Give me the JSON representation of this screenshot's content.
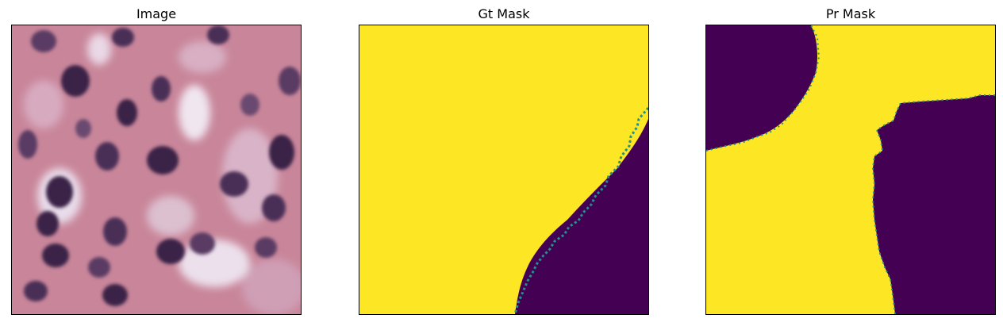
{
  "panels": [
    {
      "title": "Image"
    },
    {
      "title": "Gt Mask"
    },
    {
      "title": "Pr Mask"
    }
  ],
  "colors": {
    "mask_foreground": "#fde725",
    "mask_background": "#440154",
    "edge_teal": "#21918c",
    "tissue_base": "#c9869a",
    "tissue_light": "#e8d6e6",
    "nucleus_dark": "#3a2347",
    "nucleus_mid": "#5a3b63"
  }
}
